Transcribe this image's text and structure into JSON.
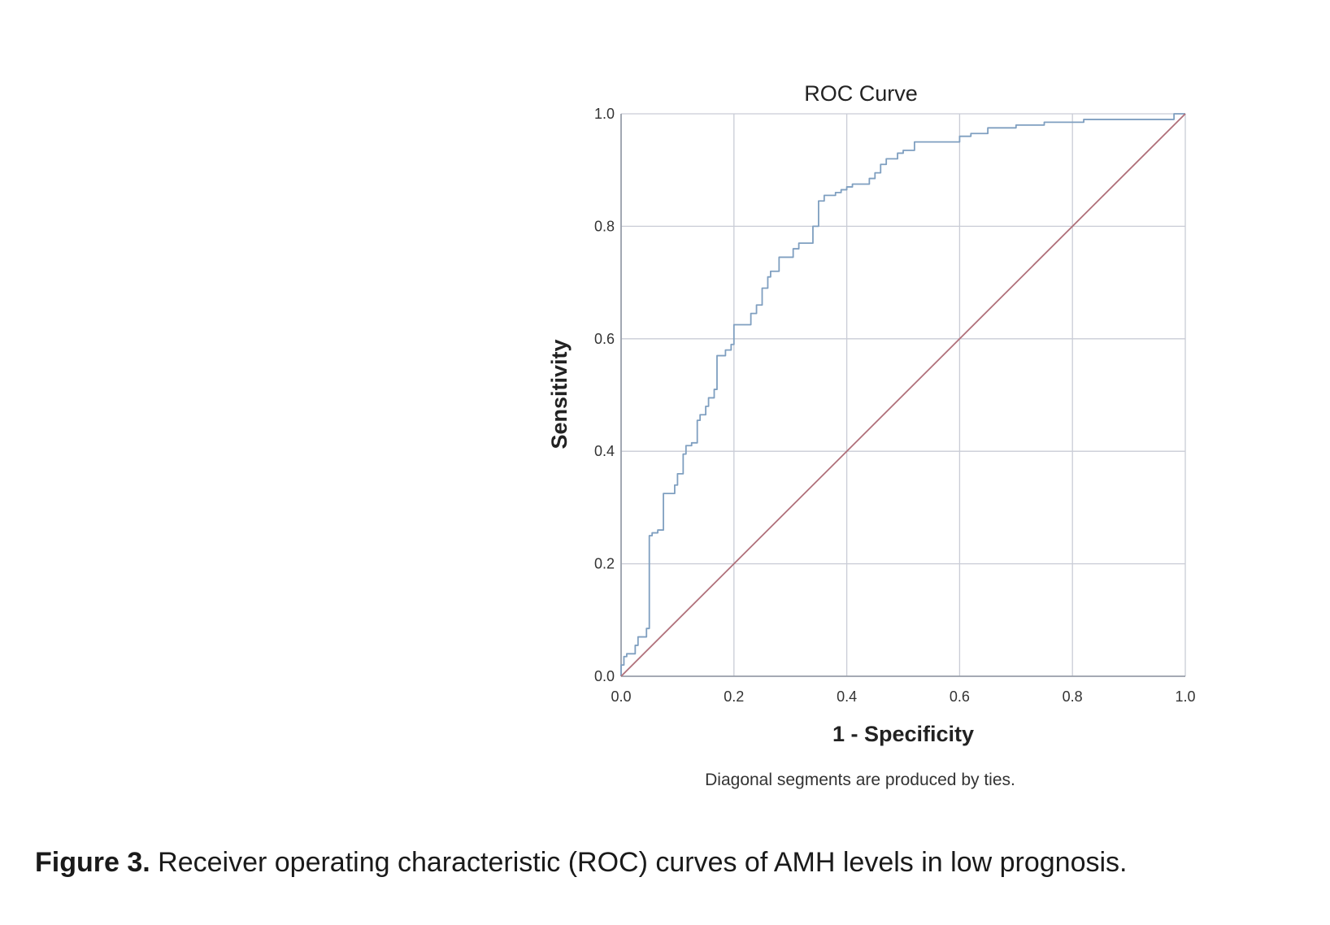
{
  "chart_data": {
    "type": "line",
    "title": "ROC Curve",
    "xlabel": "1 - Specificity",
    "ylabel": "Sensitivity",
    "xlim": [
      0.0,
      1.0
    ],
    "ylim": [
      0.0,
      1.0
    ],
    "x_ticks": [
      "0.0",
      "0.2",
      "0.4",
      "0.6",
      "0.8",
      "1.0"
    ],
    "y_ticks": [
      "0.0",
      "0.2",
      "0.4",
      "0.6",
      "0.8",
      "1.0"
    ],
    "grid": true,
    "footnote": "Diagonal segments are produced by ties.",
    "series": [
      {
        "color": "#7f9fc0",
        "x": [
          0.0,
          0.0,
          0.005,
          0.005,
          0.01,
          0.01,
          0.025,
          0.025,
          0.03,
          0.03,
          0.045,
          0.045,
          0.05,
          0.05,
          0.055,
          0.055,
          0.065,
          0.065,
          0.075,
          0.075,
          0.095,
          0.095,
          0.1,
          0.1,
          0.11,
          0.11,
          0.115,
          0.115,
          0.125,
          0.125,
          0.135,
          0.135,
          0.14,
          0.14,
          0.15,
          0.15,
          0.155,
          0.155,
          0.165,
          0.165,
          0.17,
          0.17,
          0.185,
          0.185,
          0.195,
          0.195,
          0.2,
          0.2,
          0.205,
          0.205,
          0.23,
          0.23,
          0.24,
          0.24,
          0.25,
          0.25,
          0.26,
          0.26,
          0.265,
          0.265,
          0.28,
          0.28,
          0.305,
          0.305,
          0.315,
          0.315,
          0.34,
          0.34,
          0.35,
          0.35,
          0.36,
          0.36,
          0.38,
          0.38,
          0.39,
          0.39,
          0.4,
          0.4,
          0.41,
          0.41,
          0.44,
          0.44,
          0.45,
          0.45,
          0.46,
          0.46,
          0.47,
          0.47,
          0.49,
          0.49,
          0.5,
          0.5,
          0.52,
          0.52,
          0.6,
          0.6,
          0.62,
          0.62,
          0.65,
          0.65,
          0.7,
          0.7,
          0.75,
          0.75,
          0.82,
          0.82,
          0.98,
          0.98,
          1.0
        ],
        "y": [
          0.0,
          0.02,
          0.02,
          0.035,
          0.035,
          0.04,
          0.04,
          0.055,
          0.055,
          0.07,
          0.07,
          0.085,
          0.085,
          0.25,
          0.25,
          0.255,
          0.255,
          0.26,
          0.26,
          0.325,
          0.325,
          0.34,
          0.34,
          0.36,
          0.36,
          0.395,
          0.395,
          0.41,
          0.41,
          0.415,
          0.415,
          0.455,
          0.455,
          0.465,
          0.465,
          0.48,
          0.48,
          0.495,
          0.495,
          0.51,
          0.51,
          0.57,
          0.57,
          0.58,
          0.58,
          0.59,
          0.59,
          0.625,
          0.625,
          0.625,
          0.625,
          0.645,
          0.645,
          0.66,
          0.66,
          0.69,
          0.69,
          0.71,
          0.71,
          0.72,
          0.72,
          0.745,
          0.745,
          0.76,
          0.76,
          0.77,
          0.77,
          0.8,
          0.8,
          0.845,
          0.845,
          0.855,
          0.855,
          0.86,
          0.86,
          0.865,
          0.865,
          0.87,
          0.87,
          0.875,
          0.875,
          0.885,
          0.885,
          0.895,
          0.895,
          0.91,
          0.91,
          0.92,
          0.92,
          0.93,
          0.93,
          0.935,
          0.935,
          0.95,
          0.95,
          0.96,
          0.96,
          0.965,
          0.965,
          0.975,
          0.975,
          0.98,
          0.98,
          0.985,
          0.985,
          0.99,
          0.99,
          1.0,
          1.0
        ]
      },
      {
        "color": "#b0707a",
        "x": [
          0.0,
          1.0
        ],
        "y": [
          0.0,
          1.0
        ]
      }
    ]
  },
  "caption": {
    "label": "Figure 3.",
    "text": " Receiver operating characteristic (ROC) curves of AMH levels in low prognosis."
  },
  "colors": {
    "grid": "#c9ccd6",
    "axis": "#9aa0aa"
  }
}
